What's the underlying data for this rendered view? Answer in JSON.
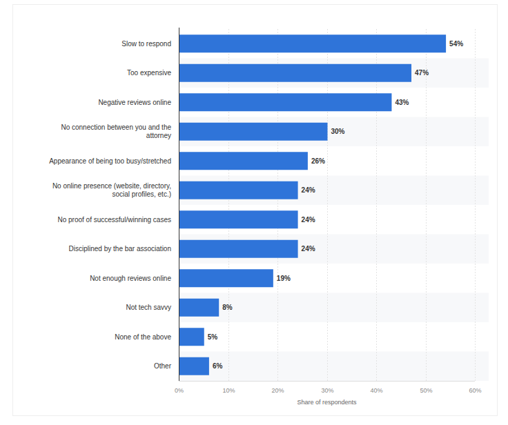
{
  "chart_data": {
    "type": "bar",
    "orientation": "horizontal",
    "categories": [
      "Slow to respond",
      "Too expensive",
      "Negative reviews online",
      "No connection between you and the attorney",
      "Appearance of being too busy/stretched",
      "No online presence (website, directory, social profiles, etc.)",
      "No proof of successful/winning cases",
      "Disciplined by the bar association",
      "Not enough reviews online",
      "Not tech savvy",
      "None of the above",
      "Other"
    ],
    "values": [
      54,
      47,
      43,
      30,
      26,
      24,
      24,
      24,
      19,
      8,
      5,
      6
    ],
    "value_labels": [
      "54%",
      "47%",
      "43%",
      "30%",
      "26%",
      "24%",
      "24%",
      "24%",
      "19%",
      "8%",
      "5%",
      "6%"
    ],
    "color": "#2f74d9",
    "x_label": "Share of respondents",
    "xlim": [
      0,
      60
    ],
    "xticks": [
      {
        "value": 0,
        "label": "0%"
      },
      {
        "value": 10,
        "label": "10%"
      },
      {
        "value": 20,
        "label": "20%"
      },
      {
        "value": 30,
        "label": "30%"
      },
      {
        "value": 40,
        "label": "40%"
      },
      {
        "value": 50,
        "label": "50%"
      },
      {
        "value": 60,
        "label": "60%"
      }
    ],
    "grid": true,
    "data_labels": true
  }
}
